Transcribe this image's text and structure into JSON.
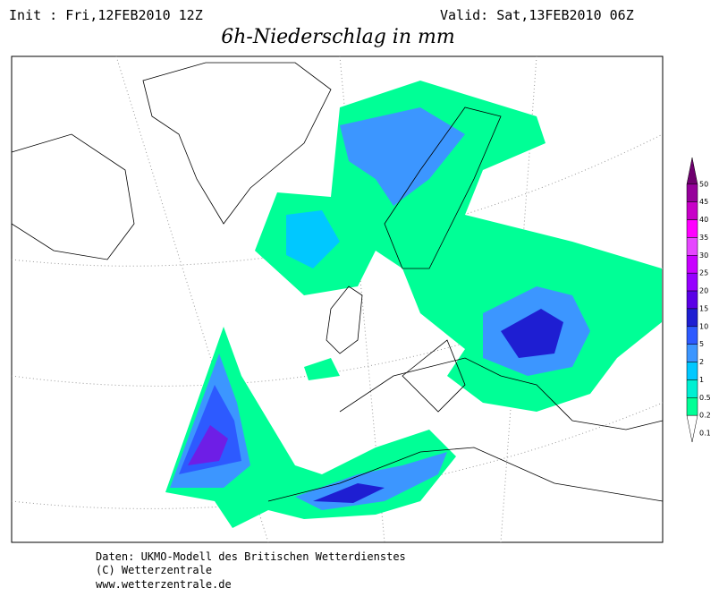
{
  "header": {
    "init": "Init : Fri,12FEB2010 12Z",
    "valid": "Valid: Sat,13FEB2010 06Z",
    "title": "6h-Niederschlag in mm"
  },
  "legend": {
    "levels": [
      {
        "value": 50,
        "color": "#6e006e"
      },
      {
        "value": 45,
        "color": "#96009b"
      },
      {
        "value": 40,
        "color": "#c800c8"
      },
      {
        "value": 35,
        "color": "#ff00ff"
      },
      {
        "value": 30,
        "color": "#e646ff"
      },
      {
        "value": 25,
        "color": "#c800ff"
      },
      {
        "value": 20,
        "color": "#9600ff"
      },
      {
        "value": 15,
        "color": "#5a00e6"
      },
      {
        "value": 10,
        "color": "#1e1ed2"
      },
      {
        "value": 5,
        "color": "#2d5aff"
      },
      {
        "value": 2,
        "color": "#3c96ff"
      },
      {
        "value": 1,
        "color": "#00c8ff"
      },
      {
        "value": 0.5,
        "color": "#00f0d2"
      },
      {
        "value": 0.2,
        "color": "#00ff96"
      },
      {
        "value": 0.1,
        "color": "#ffffff"
      }
    ]
  },
  "footer": {
    "lines": [
      "Daten: UKMO-Modell des Britischen Wetterdienstes",
      "(C) Wetterzentrale",
      "www.wetterzentrale.de"
    ]
  }
}
